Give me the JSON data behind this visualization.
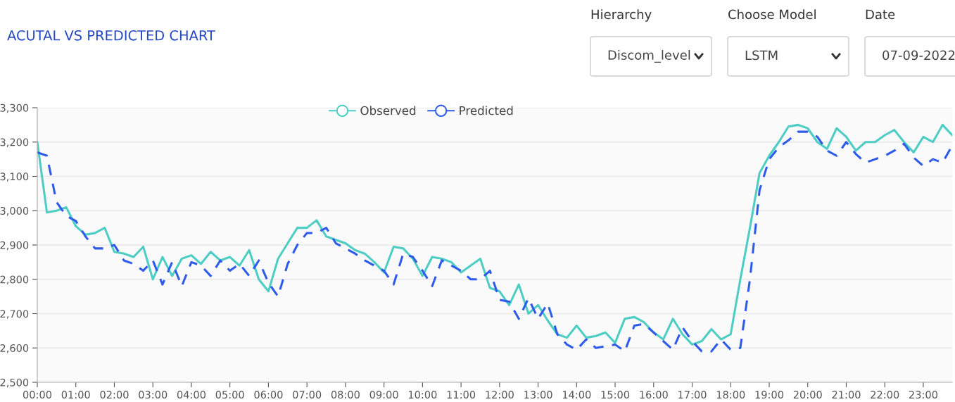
{
  "chart_data": {
    "type": "line",
    "title": "ACUTAL VS PREDICTED CHART",
    "annotations": [
      "Hierarchy",
      "Discom_level",
      "Choose Model",
      "LSTM",
      "Date",
      "07-09-2022"
    ],
    "x": [
      0,
      0.25,
      0.5,
      0.75,
      1,
      1.25,
      1.5,
      1.75,
      2,
      2.25,
      2.5,
      2.75,
      3,
      3.25,
      3.5,
      3.75,
      4,
      4.25,
      4.5,
      4.75,
      5,
      5.25,
      5.5,
      5.75,
      6,
      6.25,
      6.5,
      6.75,
      7,
      7.25,
      7.5,
      7.75,
      8,
      8.25,
      8.5,
      8.75,
      9,
      9.25,
      9.5,
      9.75,
      10,
      10.25,
      10.5,
      10.75,
      11,
      11.25,
      11.5,
      11.75,
      12,
      12.25,
      12.5,
      12.75,
      13,
      13.25,
      13.5,
      13.75,
      14,
      14.25,
      14.5,
      14.75,
      15,
      15.25,
      15.5,
      15.75,
      16,
      16.25,
      16.5,
      16.75,
      17,
      17.25,
      17.5,
      17.75,
      18,
      18.25,
      18.5,
      18.75,
      19,
      19.25,
      19.5,
      19.75,
      20,
      20.25,
      20.5,
      20.75,
      21,
      21.25,
      21.5,
      21.75,
      22,
      22.25,
      22.5,
      22.75,
      23,
      23.25,
      23.5,
      23.75
    ],
    "series": [
      {
        "name": "Observed",
        "color": "#4ecdc4",
        "line_style": "solid",
        "values": [
          3200,
          2995,
          3000,
          3010,
          2955,
          2930,
          2935,
          2950,
          2880,
          2875,
          2865,
          2895,
          2800,
          2865,
          2810,
          2860,
          2870,
          2845,
          2880,
          2855,
          2865,
          2840,
          2885,
          2800,
          2765,
          2860,
          2905,
          2950,
          2950,
          2972,
          2925,
          2915,
          2905,
          2885,
          2875,
          2850,
          2820,
          2895,
          2890,
          2860,
          2810,
          2865,
          2860,
          2850,
          2820,
          2840,
          2860,
          2775,
          2765,
          2725,
          2785,
          2700,
          2725,
          2680,
          2640,
          2630,
          2665,
          2630,
          2635,
          2645,
          2615,
          2685,
          2690,
          2675,
          2645,
          2625,
          2685,
          2640,
          2610,
          2620,
          2655,
          2625,
          2640,
          2800,
          2950,
          3110,
          3160,
          3200,
          3245,
          3250,
          3240,
          3200,
          3180,
          3240,
          3215,
          3175,
          3200,
          3200,
          3220,
          3235,
          3200,
          3170,
          3215,
          3200,
          3250,
          3220
        ]
      },
      {
        "name": "Predicted",
        "color": "#2f5bea",
        "line_style": "dashed",
        "values": [
          3170,
          3160,
          3025,
          2985,
          2970,
          2925,
          2890,
          2890,
          2900,
          2855,
          2845,
          2825,
          2855,
          2785,
          2850,
          2780,
          2850,
          2840,
          2810,
          2855,
          2825,
          2845,
          2810,
          2855,
          2790,
          2750,
          2845,
          2900,
          2935,
          2935,
          2950,
          2905,
          2890,
          2875,
          2855,
          2840,
          2825,
          2785,
          2875,
          2865,
          2825,
          2780,
          2855,
          2840,
          2825,
          2800,
          2800,
          2825,
          2740,
          2735,
          2685,
          2745,
          2685,
          2730,
          2640,
          2610,
          2595,
          2625,
          2600,
          2605,
          2610,
          2590,
          2665,
          2670,
          2645,
          2620,
          2595,
          2660,
          2620,
          2590,
          2590,
          2625,
          2595,
          2600,
          2800,
          3060,
          3150,
          3185,
          3205,
          3230,
          3230,
          3215,
          3175,
          3160,
          3200,
          3165,
          3140,
          3150,
          3160,
          3175,
          3195,
          3155,
          3130,
          3150,
          3140,
          3190
        ]
      }
    ],
    "xlim": [
      0,
      23.75
    ],
    "xticks": [
      {
        "value": 0,
        "label": "00:00"
      },
      {
        "value": 1,
        "label": "01:00"
      },
      {
        "value": 2,
        "label": "02:00"
      },
      {
        "value": 3,
        "label": "03:00"
      },
      {
        "value": 4,
        "label": "04:00"
      },
      {
        "value": 5,
        "label": "05:00"
      },
      {
        "value": 6,
        "label": "06:00"
      },
      {
        "value": 7,
        "label": "07:00"
      },
      {
        "value": 8,
        "label": "08:00"
      },
      {
        "value": 9,
        "label": "09:00"
      },
      {
        "value": 10,
        "label": "10:00"
      },
      {
        "value": 11,
        "label": "11:00"
      },
      {
        "value": 12,
        "label": "12:00"
      },
      {
        "value": 13,
        "label": "13:00"
      },
      {
        "value": 14,
        "label": "14:00"
      },
      {
        "value": 15,
        "label": "15:00"
      },
      {
        "value": 16,
        "label": "16:00"
      },
      {
        "value": 17,
        "label": "17:00"
      },
      {
        "value": 18,
        "label": "18:00"
      },
      {
        "value": 19,
        "label": "19:00"
      },
      {
        "value": 20,
        "label": "20:00"
      },
      {
        "value": 21,
        "label": "21:00"
      },
      {
        "value": 22,
        "label": "22:00"
      },
      {
        "value": 23,
        "label": "23:00"
      }
    ],
    "ylim": [
      2500,
      3300
    ],
    "yticks": [
      {
        "value": 2500,
        "label": "2,500"
      },
      {
        "value": 2600,
        "label": "2,600"
      },
      {
        "value": 2700,
        "label": "2,700"
      },
      {
        "value": 2800,
        "label": "2,800"
      },
      {
        "value": 2900,
        "label": "2,900"
      },
      {
        "value": 3000,
        "label": "3,000"
      },
      {
        "value": 3100,
        "label": "3,100"
      },
      {
        "value": 3200,
        "label": "3,200"
      },
      {
        "value": 3300,
        "label": "3,300"
      }
    ],
    "grid": "y",
    "legend": "top"
  }
}
